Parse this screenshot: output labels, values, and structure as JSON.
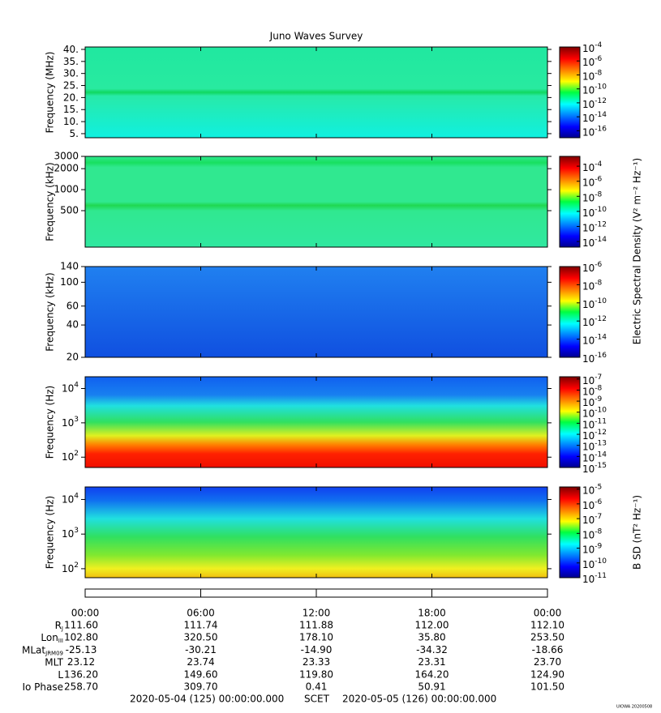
{
  "chart_data": {
    "type": "spectrogram",
    "title": "Juno Waves Survey",
    "xlim": [
      0,
      24
    ],
    "xticks": [
      {
        "value": 0,
        "label": "00:00"
      },
      {
        "value": 6,
        "label": "06:00"
      },
      {
        "value": 12,
        "label": "12:00"
      },
      {
        "value": 18,
        "label": "18:00"
      },
      {
        "value": 24,
        "label": "00:00"
      }
    ],
    "panels": [
      {
        "ylabel": "Frequency (MHz)",
        "log": false,
        "ylim": [
          3.3,
          41
        ],
        "yticks": [
          {
            "value": 40,
            "label": "40."
          },
          {
            "value": 35,
            "label": "35."
          },
          {
            "value": 30,
            "label": "30."
          },
          {
            "value": 25,
            "label": "25."
          },
          {
            "value": 20,
            "label": "20."
          },
          {
            "value": 15,
            "label": "15."
          },
          {
            "value": 10,
            "label": "10."
          },
          {
            "value": 5,
            "label": "5."
          }
        ],
        "clim": [
          1e-17,
          0.0001
        ],
        "cticks": [
          {
            "value": 0.0001,
            "label": "10",
            "sup": "-4"
          },
          {
            "value": 1e-06,
            "label": "10",
            "sup": "-6"
          },
          {
            "value": 1e-08,
            "label": "10",
            "sup": "-8"
          },
          {
            "value": 1e-10,
            "label": "10",
            "sup": "-10"
          },
          {
            "value": 1e-12,
            "label": "10",
            "sup": "-12"
          },
          {
            "value": 1e-14,
            "label": "10",
            "sup": "-14"
          },
          {
            "value": 1e-16,
            "label": "10",
            "sup": "-16"
          }
        ]
      },
      {
        "ylabel": "Frequency (kHz)",
        "log": true,
        "ylim": [
          150,
          3000
        ],
        "yticks": [
          3000,
          2000,
          1000,
          500
        ],
        "clim": [
          1.8e-15,
          0.002
        ],
        "cticks": [
          {
            "value": 0.0001,
            "label": "10",
            "sup": "-4"
          },
          {
            "value": 1e-06,
            "label": "10",
            "sup": "-6"
          },
          {
            "value": 1e-08,
            "label": "10",
            "sup": "-8"
          },
          {
            "value": 1e-10,
            "label": "10",
            "sup": "-10"
          },
          {
            "value": 1e-12,
            "label": "10",
            "sup": "-12"
          },
          {
            "value": 1e-14,
            "label": "10",
            "sup": "-14"
          }
        ],
        "clabel": "Electric Spectral Density (V² m⁻² Hz⁻¹)"
      },
      {
        "ylabel": "Frequency (kHz)",
        "log": true,
        "ylim": [
          20,
          140
        ],
        "yticks": [
          140,
          100,
          60,
          40,
          20
        ],
        "clim": [
          1e-16,
          1e-06
        ],
        "cticks": [
          {
            "value": 1e-06,
            "label": "10",
            "sup": "-6"
          },
          {
            "value": 1e-08,
            "label": "10",
            "sup": "-8"
          },
          {
            "value": 1e-10,
            "label": "10",
            "sup": "-10"
          },
          {
            "value": 1e-12,
            "label": "10",
            "sup": "-12"
          },
          {
            "value": 1e-14,
            "label": "10",
            "sup": "-14"
          },
          {
            "value": 1e-16,
            "label": "10",
            "sup": "-16"
          }
        ]
      },
      {
        "ylabel": "Frequency (Hz)",
        "log": true,
        "ylim": [
          50,
          22000
        ],
        "yticks": [
          {
            "value": 10000,
            "label": "10",
            "sup": "4"
          },
          {
            "value": 1000,
            "label": "10",
            "sup": "3"
          },
          {
            "value": 100,
            "label": "10",
            "sup": "2"
          }
        ],
        "clim": [
          1e-15,
          1.6e-07
        ],
        "cticks": [
          {
            "value": 1e-07,
            "label": "10",
            "sup": "-7"
          },
          {
            "value": 1e-08,
            "label": "10",
            "sup": "-8"
          },
          {
            "value": 1e-09,
            "label": "10",
            "sup": "-9"
          },
          {
            "value": 1e-10,
            "label": "10",
            "sup": "-10"
          },
          {
            "value": 1e-11,
            "label": "10",
            "sup": "-11"
          },
          {
            "value": 1e-12,
            "label": "10",
            "sup": "-12"
          },
          {
            "value": 1e-13,
            "label": "10",
            "sup": "-13"
          },
          {
            "value": 1e-14,
            "label": "10",
            "sup": "-14"
          },
          {
            "value": 1e-15,
            "label": "10",
            "sup": "-15"
          }
        ]
      },
      {
        "ylabel": "Frequency (Hz)",
        "log": true,
        "ylim": [
          55,
          23000
        ],
        "yticks": [
          {
            "value": 10000,
            "label": "10",
            "sup": "4"
          },
          {
            "value": 1000,
            "label": "10",
            "sup": "3"
          },
          {
            "value": 100,
            "label": "10",
            "sup": "2"
          }
        ],
        "clim": [
          1e-11,
          1.4e-05
        ],
        "cticks": [
          {
            "value": 1e-05,
            "label": "10",
            "sup": "-5"
          },
          {
            "value": 1e-06,
            "label": "10",
            "sup": "-6"
          },
          {
            "value": 1e-07,
            "label": "10",
            "sup": "-7"
          },
          {
            "value": 1e-08,
            "label": "10",
            "sup": "-8"
          },
          {
            "value": 1e-09,
            "label": "10",
            "sup": "-9"
          },
          {
            "value": 1e-10,
            "label": "10",
            "sup": "-10"
          },
          {
            "value": 1e-11,
            "label": "10",
            "sup": "-11"
          }
        ],
        "clabel": "B SD (nT² Hz⁻¹)"
      }
    ],
    "ephemeris": [
      {
        "label": "R",
        "sub": "J",
        "values": [
          "111.60",
          "111.74",
          "111.88",
          "112.00",
          "112.10"
        ]
      },
      {
        "label": "Lon",
        "sub": "III",
        "values": [
          "102.80",
          "320.50",
          "178.10",
          "35.80",
          "253.50"
        ]
      },
      {
        "label": "MLat",
        "sub": "JRM09",
        "values": [
          "-25.13",
          "-30.21",
          "-14.90",
          "-34.32",
          "-18.66"
        ]
      },
      {
        "label": "MLT",
        "values": [
          "23.12",
          "23.74",
          "23.33",
          "23.31",
          "23.70"
        ]
      },
      {
        "label": "L",
        "values": [
          "136.20",
          "149.60",
          "119.80",
          "164.20",
          "124.90"
        ]
      },
      {
        "label": "Io Phase",
        "values": [
          "258.70",
          "309.70",
          "0.41",
          "50.91",
          "101.50"
        ]
      }
    ],
    "footer": {
      "start": "2020-05-04 (125) 00:00:00.000",
      "scet": "SCET",
      "end": "2020-05-05 (126) 00:00:00.000",
      "stamp": "UIOWA 20200508"
    }
  }
}
